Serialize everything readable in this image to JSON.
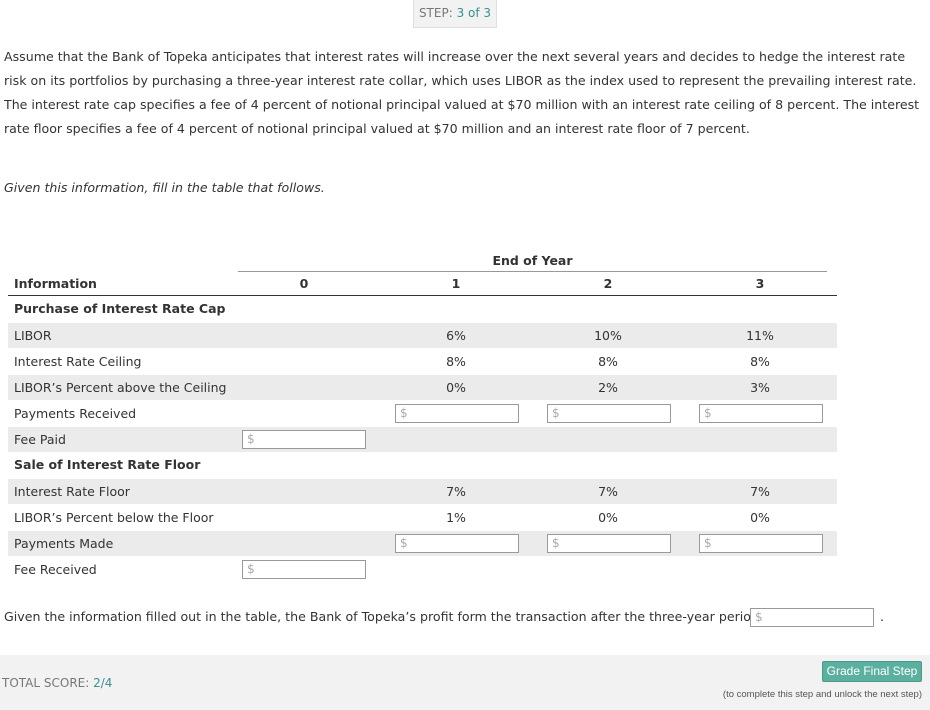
{
  "step": {
    "label": "STEP:",
    "value": "3 of 3"
  },
  "problem": "Assume that the Bank of Topeka anticipates that interest rates will increase over the next several years and decides to hedge the interest rate risk on its portfolios by purchasing a three-year interest rate collar, which uses LIBOR as the index used to represent the prevailing interest rate. The interest rate cap specifies a fee of 4 percent of notional principal valued at $70 million with an interest rate ceiling of 8 percent. The interest rate floor specifies a fee of 4 percent of notional principal valued at $70 million and an interest rate floor of 7 percent.",
  "instruction": "Given this information, fill in the table that follows.",
  "table": {
    "group_header": "End of Year",
    "columns": [
      "Information",
      "0",
      "1",
      "2",
      "3"
    ],
    "rows": [
      {
        "section": "Purchase of Interest Rate Cap"
      },
      {
        "label": "LIBOR",
        "cells": [
          null,
          "6%",
          "10%",
          "11%"
        ]
      },
      {
        "label": "Interest Rate Ceiling",
        "cells": [
          null,
          "8%",
          "8%",
          "8%"
        ]
      },
      {
        "label": "LIBOR’s Percent above the Ceiling",
        "cells": [
          null,
          "0%",
          "2%",
          "3%"
        ]
      },
      {
        "label": "Payments Received",
        "cells": [
          null,
          {
            "input": "$"
          },
          {
            "input": "$"
          },
          {
            "input": "$"
          }
        ]
      },
      {
        "label": "Fee Paid",
        "cells": [
          {
            "input": "$"
          },
          null,
          null,
          null
        ]
      },
      {
        "section": "Sale of Interest Rate Floor"
      },
      {
        "label": "Interest Rate Floor",
        "cells": [
          null,
          "7%",
          "7%",
          "7%"
        ]
      },
      {
        "label": "LIBOR’s Percent below the Floor",
        "cells": [
          null,
          "1%",
          "0%",
          "0%"
        ]
      },
      {
        "label": "Payments Made",
        "cells": [
          null,
          {
            "input": "$"
          },
          {
            "input": "$"
          },
          {
            "input": "$"
          }
        ]
      },
      {
        "label": "Fee Received",
        "cells": [
          {
            "input": "$"
          },
          null,
          null,
          null
        ]
      }
    ]
  },
  "conclusion": {
    "text": "Given the information filled out in the table, the Bank of Topeka’s profit form the transaction after the three-year period is",
    "input": "$",
    "end": "."
  },
  "footer": {
    "score_label": "TOTAL SCORE:",
    "score": "2/4",
    "button": "Grade Final Step",
    "note": "(to complete this step and unlock the next step)"
  }
}
